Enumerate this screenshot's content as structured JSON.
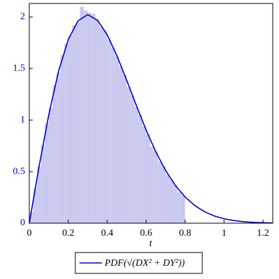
{
  "chart_data": {
    "type": "histogram",
    "x_label": "t",
    "bins": [
      0,
      0.02,
      0.04,
      0.06,
      0.08,
      0.1,
      0.12,
      0.14,
      0.16,
      0.18,
      0.2,
      0.22,
      0.24,
      0.26,
      0.28,
      0.3,
      0.32,
      0.34,
      0.36,
      0.38,
      0.4,
      0.42,
      0.44,
      0.46,
      0.48,
      0.5,
      0.52,
      0.54,
      0.56,
      0.58,
      0.6,
      0.62,
      0.64,
      0.66,
      0.68,
      0.7,
      0.72,
      0.74,
      0.76,
      0.78,
      0.8
    ],
    "counts": [
      0.11,
      0.34,
      0.55,
      0.76,
      0.97,
      1.12,
      1.34,
      1.46,
      1.63,
      1.74,
      1.82,
      1.92,
      1.95,
      2.1,
      2.06,
      2.04,
      2.03,
      1.98,
      1.9,
      1.87,
      1.78,
      1.7,
      1.62,
      1.52,
      1.44,
      1.32,
      1.24,
      1.13,
      1.05,
      0.94,
      0.86,
      0.74,
      0.7,
      0.6,
      0.55,
      0.47,
      0.42,
      0.37,
      0.3,
      0.27
    ],
    "color": "#cacaf0",
    "series": [
      {
        "name": "PDF(√(DX² + DY²))",
        "color": "#0000c8",
        "x": [
          0,
          0.05,
          0.1,
          0.15,
          0.2,
          0.25,
          0.3,
          0.35,
          0.4,
          0.45,
          0.5,
          0.55,
          0.6,
          0.65,
          0.7,
          0.75,
          0.8,
          0.85,
          0.9,
          0.95,
          1,
          1.05,
          1.1,
          1.15,
          1.2,
          1.25
        ],
        "values": [
          0,
          0.548,
          1.051,
          1.471,
          1.78,
          1.961,
          2.022,
          1.967,
          1.827,
          1.623,
          1.386,
          1.14,
          0.902,
          0.69,
          0.511,
          0.366,
          0.254,
          0.171,
          0.111,
          0.07,
          0.043,
          0.026,
          0.015,
          0.008,
          0.005,
          0.002
        ]
      }
    ],
    "xlim": [
      0,
      1.25
    ],
    "ylim": [
      0,
      2.13
    ],
    "xticks": [
      0,
      0.2,
      0.4,
      0.6,
      0.8,
      1,
      1.2
    ],
    "yticks": [
      0,
      0.5,
      1,
      1.5,
      2
    ]
  }
}
